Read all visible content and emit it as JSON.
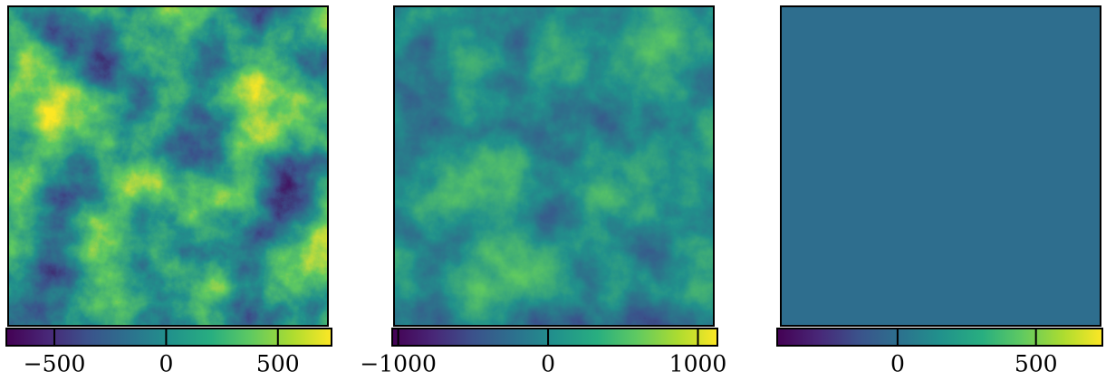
{
  "chart_data": [
    {
      "type": "image",
      "cmap": "viridis",
      "clim": [
        -715,
        740
      ],
      "cticks": [
        {
          "value": -500,
          "label": "−500"
        },
        0,
        500
      ]
    },
    {
      "type": "image",
      "cmap": "viridis",
      "clim": [
        -1040,
        1130
      ],
      "cticks": [
        {
          "value": -1000,
          "label": "−1000"
        },
        0,
        1000
      ]
    },
    {
      "type": "image",
      "cmap": "viridis",
      "clim": [
        -435,
        740
      ],
      "cticks": [
        0,
        500
      ]
    }
  ]
}
